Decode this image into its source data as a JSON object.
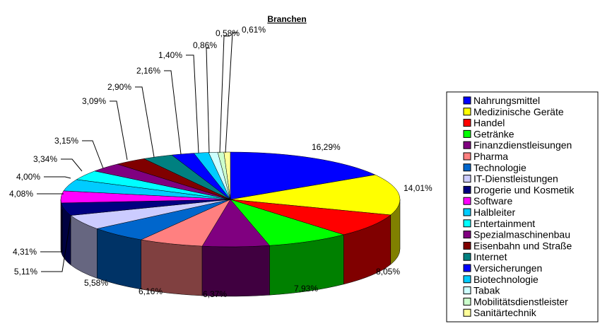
{
  "chart_data": {
    "type": "pie",
    "title": "Branchen",
    "legend_position": "right",
    "three_d": true,
    "categories": [
      "Nahrungsmittel",
      "Medizinische Geräte",
      "Handel",
      "Getränke",
      "Finanzdienstleisungen",
      "Pharma",
      "Technologie",
      "IT-Dienstleistungen",
      "Drogerie und Kosmetik",
      "Software",
      "Halbleiter",
      "Entertainment",
      "Spezialmaschinenbau",
      "Eisenbahn und Straße",
      "Internet",
      "Versicherungen",
      "Biotechnologie",
      "Tabak",
      "Mobilitätsdienstleister",
      "Sanitärtechnik"
    ],
    "values": [
      16.29,
      14.01,
      8.05,
      7.93,
      6.37,
      6.16,
      5.58,
      5.11,
      4.31,
      4.08,
      4.0,
      3.34,
      3.15,
      3.09,
      2.9,
      2.16,
      1.4,
      0.86,
      0.58,
      0.61
    ],
    "labels": [
      "16,29%",
      "14,01%",
      "8,05%",
      "7,93%",
      "6,37%",
      "6,16%",
      "5,58%",
      "5,11%",
      "4,31%",
      "4,08%",
      "4,00%",
      "3,34%",
      "3,15%",
      "3,09%",
      "2,90%",
      "2,16%",
      "1,40%",
      "0,86%",
      "0,58%",
      "0,61%"
    ],
    "colors": [
      "#0000ff",
      "#ffff00",
      "#ff0000",
      "#00ff00",
      "#800080",
      "#ff8080",
      "#0066cc",
      "#ccccff",
      "#000080",
      "#ff00ff",
      "#00ccff",
      "#00ffff",
      "#800080",
      "#800000",
      "#008080",
      "#0000ff",
      "#00ccff",
      "#ccffff",
      "#ccffcc",
      "#ffff99"
    ]
  }
}
